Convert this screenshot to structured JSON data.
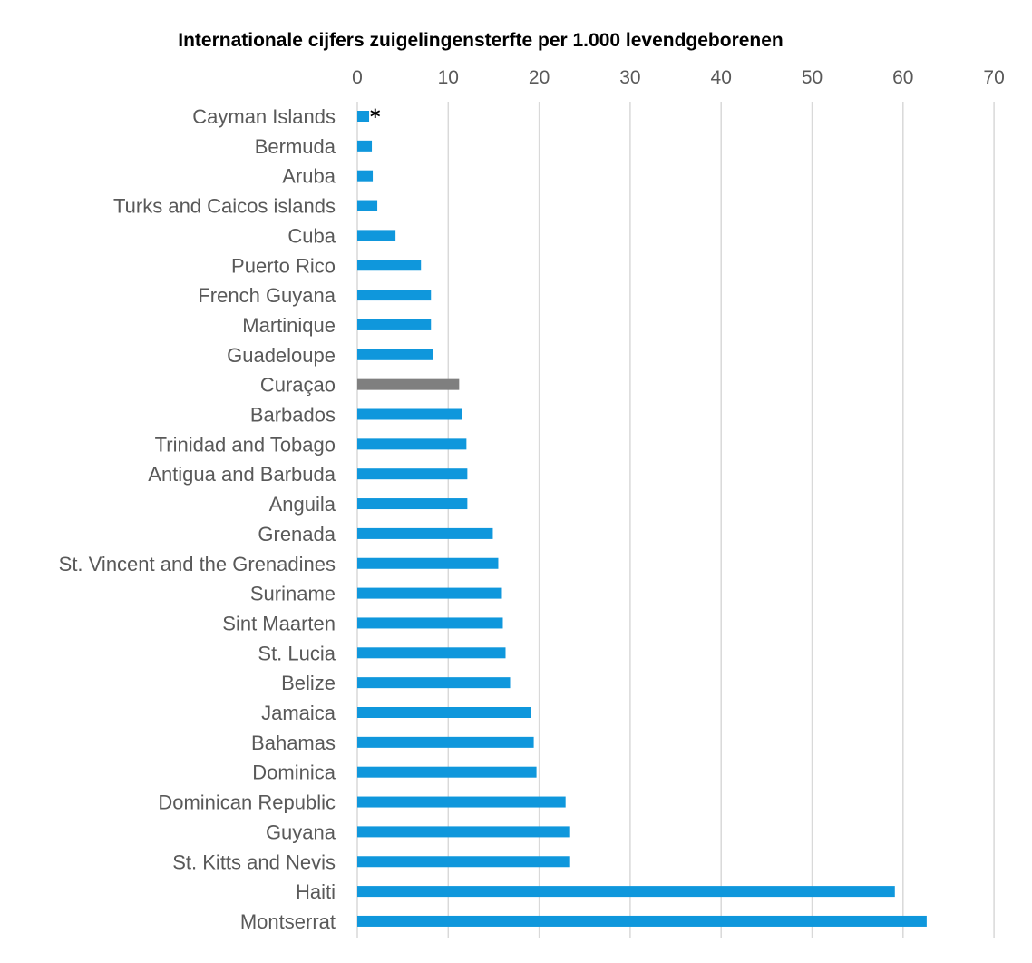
{
  "chart_data": {
    "type": "bar",
    "orientation": "horizontal",
    "title": "Internationale cijfers zuigelingensterfte per 1.000 levendgeborenen",
    "xlabel": "",
    "ylabel": "",
    "xlim": [
      0,
      70
    ],
    "x_ticks": [
      "0",
      "10",
      "20",
      "30",
      "40",
      "50",
      "60",
      "70"
    ],
    "x_tick_values": [
      0,
      10,
      20,
      30,
      40,
      50,
      60,
      70
    ],
    "x_axis_position": "top",
    "grid": true,
    "legend": "none",
    "categories": [
      "Cayman Islands",
      "Bermuda",
      "Aruba",
      "Turks and Caicos islands",
      "Cuba",
      "Puerto Rico",
      "French Guyana",
      "Martinique",
      "Guadeloupe",
      "Curaçao",
      "Barbados",
      "Trinidad and Tobago",
      "Antigua and Barbuda",
      "Anguila",
      "Grenada",
      "St. Vincent and the Grenadines",
      "Suriname",
      "Sint Maarten",
      "St. Lucia",
      "Belize",
      "Jamaica",
      "Bahamas",
      "Dominica",
      "Dominican Republic",
      "Guyana",
      "St. Kitts and Nevis",
      "Haiti",
      "Montserrat"
    ],
    "values": [
      1.3,
      1.6,
      1.7,
      2.2,
      4.2,
      7.0,
      8.1,
      8.1,
      8.3,
      11.2,
      11.5,
      12.0,
      12.1,
      12.1,
      14.9,
      15.5,
      15.9,
      16.0,
      16.3,
      16.8,
      19.1,
      19.4,
      19.7,
      22.9,
      23.3,
      23.3,
      59.1,
      62.6
    ],
    "colors": {
      "default_bar": "#0f97dc",
      "highlight_bar": "#7f7f7f",
      "grid": "#d9d9d9",
      "label_text": "#595959",
      "title_text": "#000000"
    },
    "highlight_category": "Curaçao",
    "annotations": [
      {
        "category": "Cayman Islands",
        "symbol": "*"
      }
    ]
  }
}
